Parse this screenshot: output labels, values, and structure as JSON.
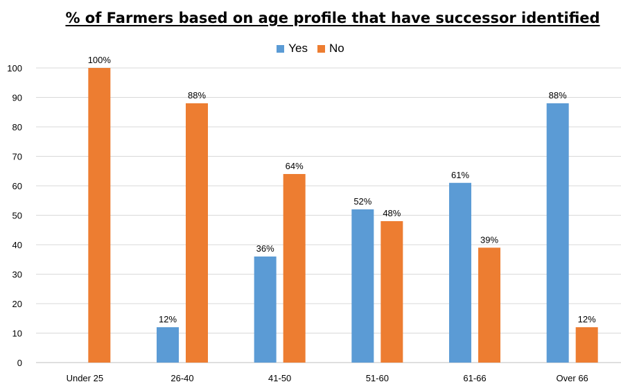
{
  "chart_data": {
    "type": "bar",
    "title": "% of Farmers based on age profile that have successor identified",
    "categories": [
      "Under 25",
      "26-40",
      "41-50",
      "51-60",
      "61-66",
      "Over 66"
    ],
    "series": [
      {
        "name": "Yes",
        "color": "#5B9BD5",
        "values": [
          null,
          12,
          36,
          52,
          61,
          88
        ],
        "labels": [
          "",
          "12%",
          "36%",
          "52%",
          "61%",
          "88%"
        ]
      },
      {
        "name": "No",
        "color": "#ED7D31",
        "values": [
          100,
          88,
          64,
          48,
          39,
          12
        ],
        "labels": [
          "100%",
          "88%",
          "64%",
          "48%",
          "39%",
          "12%"
        ]
      }
    ],
    "ylim": [
      0,
      100
    ],
    "yticks": [
      0,
      10,
      20,
      30,
      40,
      50,
      60,
      70,
      80,
      90,
      100
    ],
    "grid": true,
    "legend_position": "top-center"
  }
}
